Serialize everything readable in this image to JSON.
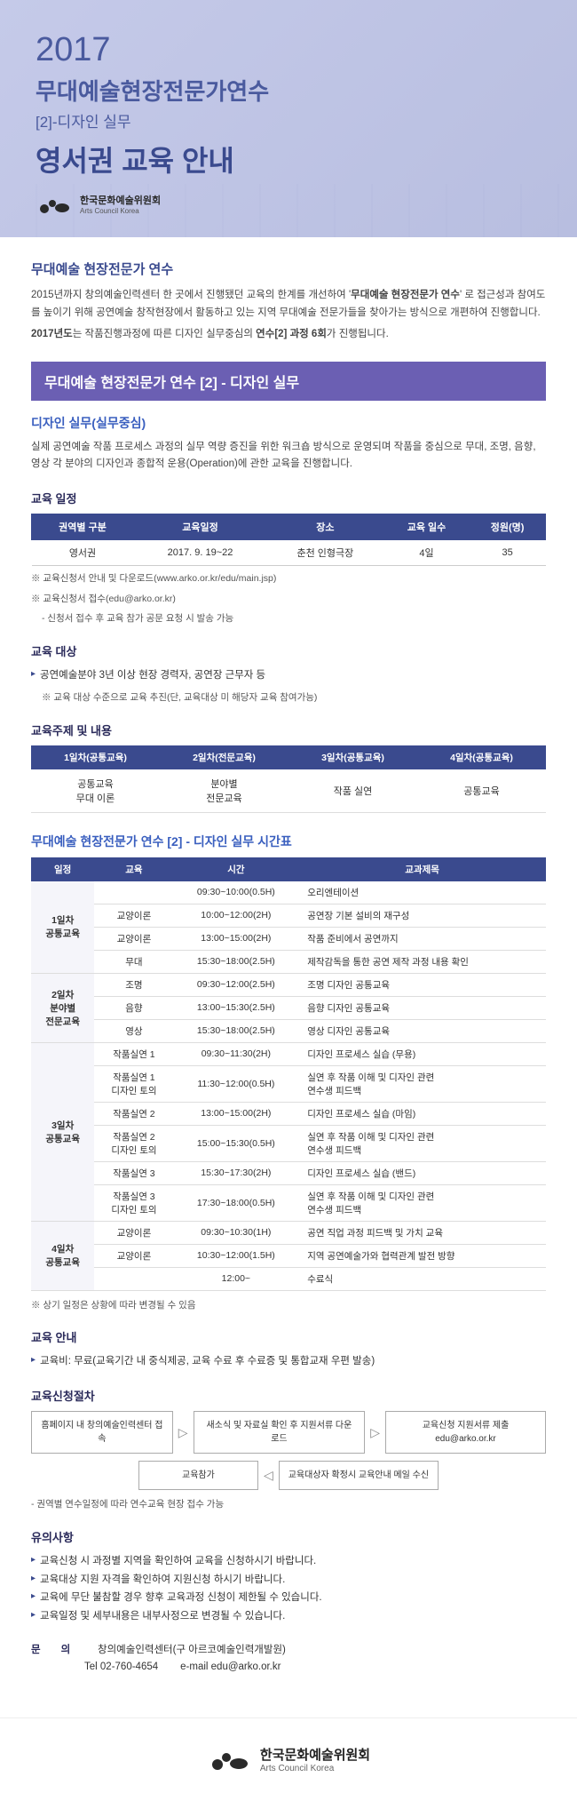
{
  "header": {
    "year": "2017",
    "title_main": "무대예술현장전문가연수",
    "title_sub": "[2]-디자인 실무",
    "title_region": "영서권 교육 안내",
    "org_kr": "한국문화예술위원회",
    "org_en": "Arts Council Korea"
  },
  "intro": {
    "heading": "무대예술 현장전문가 연수",
    "p1_a": "2015년까지 창의예술인력센터 한 곳에서 진행됐던 교육의 한계를 개선하여 '",
    "p1_bold": "무대예술 현장전문가 연수",
    "p1_b": "' 로 접근성과 참여도를 높이기 위해 공연예술 창작현장에서 활동하고 있는 지역 무대예술 전문가들을 찾아가는 방식으로 개편하여 진행합니다.",
    "p2_a": "2017년도",
    "p2_b": "는 작품진행과정에 따른 디자인 실무중심의 ",
    "p2_bold": "연수[2] 과정 6회",
    "p2_c": "가 진행됩니다."
  },
  "banner": "무대예술 현장전문가 연수 [2] - 디자인 실무",
  "design": {
    "heading": "디자인 실무(실무중심)",
    "desc": "실제 공연예술 작품 프로세스 과정의 실무 역량 증진을 위한 워크숍 방식으로 운영되며 작품을 중심으로 무대, 조명, 음향, 영상 각 분야의 디자인과 종합적 운용(Operation)에 관한 교육을 진행합니다."
  },
  "schedule": {
    "heading": "교육 일정",
    "headers": [
      "권역별 구분",
      "교육일정",
      "장소",
      "교육 일수",
      "정원(명)"
    ],
    "row": [
      "영서권",
      "2017. 9. 19~22",
      "춘천 인형극장",
      "4일",
      "35"
    ],
    "notes": [
      "※ 교육신청서 안내 및 다운로드(www.arko.or.kr/edu/main.jsp)",
      "※ 교육신청서 접수(edu@arko.or.kr)",
      "- 신청서 접수 후 교육 참가 공문 요청 시 발송 가능"
    ]
  },
  "target": {
    "heading": "교육 대상",
    "item": "공연예술분야 3년 이상 현장 경력자, 공연장 근무자 등",
    "note": "※ 교육 대상 수준으로 교육 추진(단, 교육대상 미 해당자 교육 참여가능)"
  },
  "topics": {
    "heading": "교육주제 및 내용",
    "headers": [
      "1일차(공통교육)",
      "2일차(전문교육)",
      "3일차(공통교육)",
      "4일차(공통교육)"
    ],
    "cells": [
      "공통교육\n무대 이론",
      "분야별\n전문교육",
      "작품 실연",
      "공통교육"
    ]
  },
  "timetable": {
    "heading": "무대예술 현장전문가 연수 [2] - 디자인 실무 시간표",
    "headers": [
      "일정",
      "교육",
      "시간",
      "교과제목"
    ],
    "rows": [
      {
        "day": "1일차\n공통교육",
        "rowspan": 4,
        "edu": "",
        "time": "09:30~10:00(0.5H)",
        "subj": "오리엔테이션"
      },
      {
        "edu": "교양이론",
        "time": "10:00~12:00(2H)",
        "subj": "공연장 기본 설비의 재구성"
      },
      {
        "edu": "교양이론",
        "time": "13:00~15:00(2H)",
        "subj": "작품 준비에서 공연까지"
      },
      {
        "edu": "무대",
        "time": "15:30~18:00(2.5H)",
        "subj": "제작감독을 통한 공연 제작 과정 내용 확인"
      },
      {
        "day": "2일차\n분야별\n전문교육",
        "rowspan": 3,
        "edu": "조명",
        "time": "09:30~12:00(2.5H)",
        "subj": "조명 디자인 공통교육"
      },
      {
        "edu": "음향",
        "time": "13:00~15:30(2.5H)",
        "subj": "음향 디자인 공통교육"
      },
      {
        "edu": "영상",
        "time": "15:30~18:00(2.5H)",
        "subj": "영상 디자인 공통교육"
      },
      {
        "day": "3일차\n공통교육",
        "rowspan": 6,
        "edu": "작품실연 1",
        "time": "09:30~11:30(2H)",
        "subj": "디자인 프로세스 실습 (무용)"
      },
      {
        "edu": "작품실연 1\n디자인 토의",
        "time": "11:30~12:00(0.5H)",
        "subj": "실연 후 작품 이해 및 디자인 관련\n연수생 피드백"
      },
      {
        "edu": "작품실연 2",
        "time": "13:00~15:00(2H)",
        "subj": "디자인 프로세스 실습 (마임)"
      },
      {
        "edu": "작품실연 2\n디자인 토의",
        "time": "15:00~15:30(0.5H)",
        "subj": "실연 후 작품 이해 및 디자인 관련\n연수생 피드백"
      },
      {
        "edu": "작품실연 3",
        "time": "15:30~17:30(2H)",
        "subj": "디자인 프로세스 실습 (밴드)"
      },
      {
        "edu": "작품실연 3\n디자인 토의",
        "time": "17:30~18:00(0.5H)",
        "subj": "실연 후 작품 이해 및 디자인 관련\n연수생 피드백"
      },
      {
        "day": "4일차\n공통교육",
        "rowspan": 3,
        "edu": "교양이론",
        "time": "09:30~10:30(1H)",
        "subj": "공연 직업 과정 피드백 및 가치 교육"
      },
      {
        "edu": "교양이론",
        "time": "10:30~12:00(1.5H)",
        "subj": "지역 공연예술가와 협력관계 발전 방향"
      },
      {
        "edu": "",
        "time": "12:00~",
        "subj": "수료식"
      }
    ],
    "footnote": "※ 상기 일정은 상황에 따라 변경될 수 있음"
  },
  "guide": {
    "heading": "교육 안내",
    "item": "교육비: 무료(교육기간 내 중식제공, 교육 수료 후 수료증 및 통합교재 우편 발송)"
  },
  "process": {
    "heading": "교육신청절차",
    "boxes": [
      "홈페이지 내\n창의예술인력센터 접속",
      "새소식 및 자료실 확인\n후 지원서류 다운로드",
      "교육신청\n지원서류 제출 edu@arko.or.kr",
      "교육참가",
      "교육대상자 확정시\n교육안내 메일 수신"
    ],
    "note": "- 권역별 연수일정에 따라 연수교육 현장 접수 가능"
  },
  "caution": {
    "heading": "유의사항",
    "items": [
      "교육신청 시 과정별 지역을 확인하여 교육을 신청하시기 바랍니다.",
      "교육대상 지원 자격을 확인하여 지원신청 하시기 바랍니다.",
      "교육에 무단 불참할 경우 향후 교육과정 신청이 제한될 수 있습니다.",
      "교육일정 및 세부내용은 내부사정으로 변경될 수 있습니다."
    ]
  },
  "contact": {
    "label": "문　　의",
    "org": "창의예술인력센터(구 아르코예술인력개발원)",
    "tel_label": "Tel",
    "tel": "02-760-4654",
    "email_label": "e-mail",
    "email": "edu@arko.or.kr"
  },
  "footer": {
    "org_kr": "한국문화예술위원회",
    "org_en": "Arts Council Korea"
  },
  "colors": {
    "primary": "#3a4a8e",
    "banner": "#6b5fb3",
    "heading_blue": "#3a5fbf"
  }
}
